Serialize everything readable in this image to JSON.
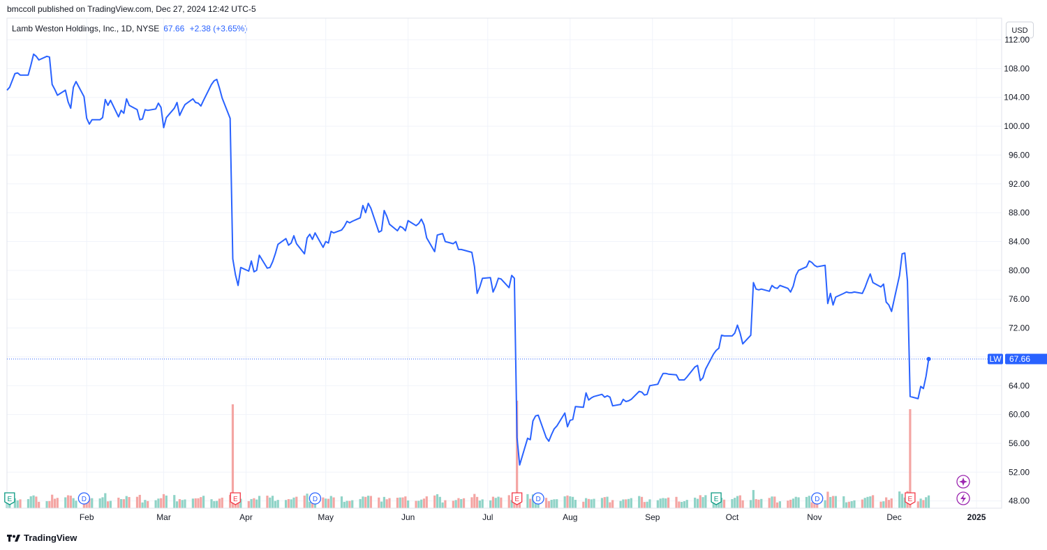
{
  "header": {
    "published": "bmccoll published on TradingView.com, Dec 27, 2024 12:42 UTC-5"
  },
  "legend": {
    "name": "Lamb Weston Holdings, Inc., 1D, NYSE",
    "price": "67.66",
    "change": "+2.38 (+3.65%)"
  },
  "currency_label": "USD",
  "price_badge": {
    "symbol": "LW",
    "value": "67.66"
  },
  "footer": {
    "brand": "TradingView"
  },
  "colors": {
    "line": "#2962ff",
    "vol_up": "#26a69a",
    "vol_down": "#ef5350",
    "earnings": "#f23645",
    "dividend": "#2962ff"
  },
  "chart_data": {
    "type": "line",
    "ylim": [
      47,
      115
    ],
    "y_ticks": [
      "48.00",
      "52.00",
      "56.00",
      "60.00",
      "64.00",
      "68.00",
      "72.00",
      "76.00",
      "80.00",
      "84.00",
      "88.00",
      "92.00",
      "96.00",
      "100.00",
      "104.00",
      "108.00",
      "112.00"
    ],
    "x_ticks": [
      "Feb",
      "Mar",
      "Apr",
      "May",
      "Jun",
      "Jul",
      "Aug",
      "Sep",
      "Oct",
      "Nov",
      "Dec",
      "2025"
    ],
    "x_tick_days": [
      31,
      60,
      91,
      121,
      152,
      182,
      213,
      244,
      274,
      305,
      335,
      366
    ],
    "x_range_days": [
      1,
      361
    ],
    "series": [
      {
        "close": [
          [
            1,
            105.0
          ],
          [
            2,
            105.4
          ],
          [
            4,
            107.3
          ],
          [
            5,
            107.4
          ],
          [
            6,
            107.1
          ],
          [
            9,
            107.1
          ],
          [
            10,
            108.5
          ],
          [
            11,
            110.0
          ],
          [
            12,
            109.7
          ],
          [
            13,
            109.2
          ],
          [
            16,
            109.7
          ],
          [
            17,
            109.6
          ],
          [
            18,
            105.8
          ],
          [
            19,
            105.1
          ],
          [
            20,
            104.3
          ],
          [
            23,
            105.0
          ],
          [
            24,
            103.4
          ],
          [
            25,
            102.5
          ],
          [
            26,
            105.4
          ],
          [
            27,
            106.2
          ],
          [
            30,
            104.1
          ],
          [
            31,
            101.1
          ],
          [
            32,
            100.3
          ],
          [
            33,
            100.9
          ],
          [
            36,
            100.9
          ],
          [
            37,
            101.2
          ],
          [
            38,
            103.7
          ],
          [
            39,
            102.9
          ],
          [
            40,
            103.6
          ],
          [
            43,
            101.3
          ],
          [
            44,
            102.2
          ],
          [
            45,
            101.8
          ],
          [
            46,
            103.8
          ],
          [
            47,
            102.9
          ],
          [
            50,
            102.3
          ],
          [
            51,
            100.9
          ],
          [
            52,
            101.0
          ],
          [
            53,
            102.3
          ],
          [
            54,
            102.2
          ],
          [
            57,
            102.4
          ],
          [
            58,
            103.2
          ],
          [
            59,
            102.6
          ],
          [
            60,
            99.8
          ],
          [
            61,
            101.2
          ],
          [
            64,
            102.5
          ],
          [
            65,
            103.3
          ],
          [
            66,
            101.5
          ],
          [
            67,
            102.3
          ],
          [
            68,
            103.0
          ],
          [
            71,
            103.8
          ],
          [
            72,
            103.3
          ],
          [
            73,
            103.2
          ],
          [
            74,
            102.8
          ],
          [
            75,
            103.6
          ],
          [
            78,
            105.8
          ],
          [
            79,
            106.3
          ],
          [
            80,
            106.5
          ],
          [
            81,
            105.3
          ],
          [
            82,
            103.9
          ],
          [
            85,
            101.1
          ],
          [
            86,
            81.6
          ],
          [
            87,
            79.4
          ],
          [
            88,
            77.9
          ],
          [
            89,
            80.4
          ],
          [
            92,
            79.9
          ],
          [
            93,
            81.3
          ],
          [
            94,
            79.8
          ],
          [
            95,
            80.0
          ],
          [
            96,
            82.1
          ],
          [
            99,
            80.3
          ],
          [
            100,
            80.4
          ],
          [
            101,
            81.2
          ],
          [
            102,
            82.3
          ],
          [
            103,
            83.6
          ],
          [
            106,
            84.4
          ],
          [
            107,
            83.5
          ],
          [
            108,
            83.8
          ],
          [
            109,
            84.8
          ],
          [
            110,
            83.7
          ],
          [
            113,
            82.3
          ],
          [
            114,
            84.5
          ],
          [
            115,
            85.0
          ],
          [
            116,
            84.3
          ],
          [
            117,
            85.2
          ],
          [
            120,
            83.2
          ],
          [
            121,
            84.0
          ],
          [
            122,
            83.8
          ],
          [
            123,
            85.4
          ],
          [
            124,
            85.2
          ],
          [
            127,
            85.6
          ],
          [
            128,
            86.1
          ],
          [
            129,
            86.8
          ],
          [
            130,
            86.6
          ],
          [
            131,
            86.8
          ],
          [
            134,
            87.3
          ],
          [
            135,
            89.0
          ],
          [
            136,
            88.0
          ],
          [
            137,
            89.3
          ],
          [
            138,
            88.6
          ],
          [
            141,
            85.3
          ],
          [
            142,
            85.5
          ],
          [
            143,
            88.3
          ],
          [
            144,
            87.5
          ],
          [
            145,
            86.4
          ],
          [
            148,
            85.5
          ],
          [
            149,
            86.1
          ],
          [
            150,
            85.9
          ],
          [
            151,
            85.5
          ],
          [
            152,
            86.9
          ],
          [
            155,
            86.2
          ],
          [
            156,
            86.5
          ],
          [
            157,
            87.1
          ],
          [
            158,
            86.3
          ],
          [
            159,
            84.5
          ],
          [
            162,
            82.6
          ],
          [
            163,
            84.9
          ],
          [
            164,
            85.0
          ],
          [
            165,
            85.1
          ],
          [
            166,
            84.0
          ],
          [
            169,
            83.7
          ],
          [
            170,
            84.0
          ],
          [
            171,
            82.9
          ],
          [
            172,
            82.9
          ],
          [
            173,
            82.8
          ],
          [
            176,
            82.5
          ],
          [
            177,
            80.5
          ],
          [
            178,
            76.8
          ],
          [
            179,
            77.7
          ],
          [
            180,
            78.9
          ],
          [
            183,
            79.0
          ],
          [
            184,
            77.0
          ],
          [
            185,
            77.8
          ],
          [
            186,
            78.9
          ],
          [
            187,
            78.8
          ],
          [
            190,
            77.6
          ],
          [
            191,
            79.3
          ],
          [
            192,
            78.9
          ],
          [
            193,
            56.8
          ],
          [
            194,
            53.0
          ],
          [
            197,
            56.7
          ],
          [
            198,
            56.5
          ],
          [
            199,
            59.1
          ],
          [
            200,
            59.8
          ],
          [
            201,
            59.9
          ],
          [
            204,
            56.8
          ],
          [
            205,
            56.3
          ],
          [
            206,
            57.2
          ],
          [
            207,
            58.0
          ],
          [
            208,
            58.4
          ],
          [
            211,
            60.2
          ],
          [
            212,
            58.3
          ],
          [
            213,
            59.2
          ],
          [
            214,
            59.3
          ],
          [
            215,
            61.1
          ],
          [
            218,
            61.0
          ],
          [
            219,
            63.0
          ],
          [
            220,
            62.0
          ],
          [
            221,
            62.3
          ],
          [
            222,
            62.5
          ],
          [
            225,
            62.8
          ],
          [
            226,
            62.4
          ],
          [
            227,
            62.6
          ],
          [
            228,
            62.4
          ],
          [
            229,
            61.2
          ],
          [
            232,
            61.4
          ],
          [
            233,
            62.1
          ],
          [
            234,
            61.8
          ],
          [
            235,
            61.9
          ],
          [
            236,
            62.1
          ],
          [
            239,
            63.2
          ],
          [
            240,
            63.1
          ],
          [
            241,
            62.7
          ],
          [
            242,
            62.8
          ],
          [
            243,
            64.0
          ],
          [
            246,
            64.2
          ],
          [
            247,
            65.0
          ],
          [
            248,
            65.7
          ],
          [
            249,
            65.7
          ],
          [
            250,
            65.6
          ],
          [
            253,
            65.5
          ],
          [
            254,
            64.8
          ],
          [
            255,
            64.8
          ],
          [
            256,
            64.8
          ],
          [
            257,
            65.2
          ],
          [
            260,
            66.6
          ],
          [
            261,
            66.8
          ],
          [
            262,
            64.7
          ],
          [
            263,
            65.1
          ],
          [
            264,
            66.3
          ],
          [
            267,
            68.4
          ],
          [
            268,
            68.9
          ],
          [
            269,
            69.2
          ],
          [
            270,
            71.0
          ],
          [
            271,
            70.9
          ],
          [
            274,
            70.9
          ],
          [
            275,
            71.3
          ],
          [
            276,
            72.4
          ],
          [
            277,
            71.3
          ],
          [
            278,
            69.8
          ],
          [
            281,
            71.0
          ],
          [
            282,
            78.3
          ],
          [
            283,
            77.4
          ],
          [
            284,
            77.3
          ],
          [
            285,
            77.4
          ],
          [
            288,
            77.1
          ],
          [
            289,
            77.9
          ],
          [
            290,
            77.6
          ],
          [
            291,
            77.5
          ],
          [
            292,
            77.9
          ],
          [
            295,
            77.5
          ],
          [
            296,
            77.0
          ],
          [
            297,
            77.8
          ],
          [
            298,
            79.3
          ],
          [
            299,
            80.0
          ],
          [
            302,
            80.5
          ],
          [
            303,
            81.3
          ],
          [
            304,
            81.1
          ],
          [
            305,
            80.7
          ],
          [
            306,
            80.5
          ],
          [
            309,
            80.7
          ],
          [
            310,
            75.4
          ],
          [
            311,
            76.8
          ],
          [
            312,
            75.2
          ],
          [
            313,
            76.3
          ],
          [
            316,
            76.8
          ],
          [
            317,
            77.0
          ],
          [
            318,
            76.9
          ],
          [
            319,
            76.9
          ],
          [
            320,
            77.0
          ],
          [
            323,
            76.8
          ],
          [
            324,
            77.6
          ],
          [
            325,
            78.6
          ],
          [
            326,
            79.5
          ],
          [
            327,
            78.3
          ],
          [
            330,
            77.7
          ],
          [
            331,
            78.1
          ],
          [
            332,
            75.6
          ],
          [
            333,
            75.2
          ],
          [
            334,
            74.3
          ],
          [
            337,
            79.3
          ],
          [
            338,
            82.3
          ],
          [
            339,
            82.4
          ],
          [
            340,
            78.5
          ],
          [
            341,
            62.5
          ],
          [
            344,
            62.2
          ],
          [
            345,
            63.9
          ],
          [
            346,
            63.6
          ],
          [
            347,
            65.3
          ],
          [
            348,
            67.7
          ]
        ]
      }
    ],
    "volume_bars": 245,
    "earnings_markers_days": [
      2,
      87,
      193,
      268,
      341
    ],
    "dividend_markers_days": [
      30,
      117,
      201,
      306
    ]
  }
}
